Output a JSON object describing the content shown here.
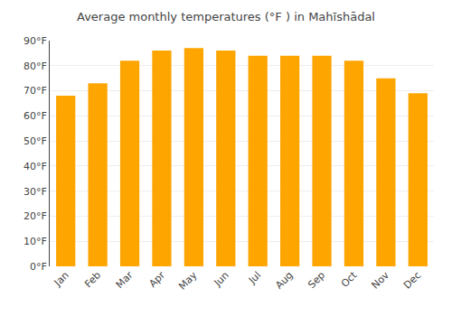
{
  "chart_data": {
    "type": "bar",
    "title": "Average monthly temperatures (°F ) in Mahīshādal",
    "categories": [
      "Jan",
      "Feb",
      "Mar",
      "Apr",
      "May",
      "Jun",
      "Jul",
      "Aug",
      "Sep",
      "Oct",
      "Nov",
      "Dec"
    ],
    "values": [
      68,
      73,
      82,
      86,
      87,
      86,
      84,
      84,
      84,
      82,
      75,
      69
    ],
    "color": "#FFA500",
    "ylim": [
      0,
      90
    ],
    "yticks": [
      {
        "value": 0,
        "label": "0°F"
      },
      {
        "value": 10,
        "label": "10°F"
      },
      {
        "value": 20,
        "label": "20°F"
      },
      {
        "value": 30,
        "label": "30°F"
      },
      {
        "value": 40,
        "label": "40°F"
      },
      {
        "value": 50,
        "label": "50°F"
      },
      {
        "value": 60,
        "label": "60°F"
      },
      {
        "value": 70,
        "label": "70°F"
      },
      {
        "value": 80,
        "label": "80°F"
      },
      {
        "value": 90,
        "label": "90°F"
      }
    ],
    "grid": true
  }
}
